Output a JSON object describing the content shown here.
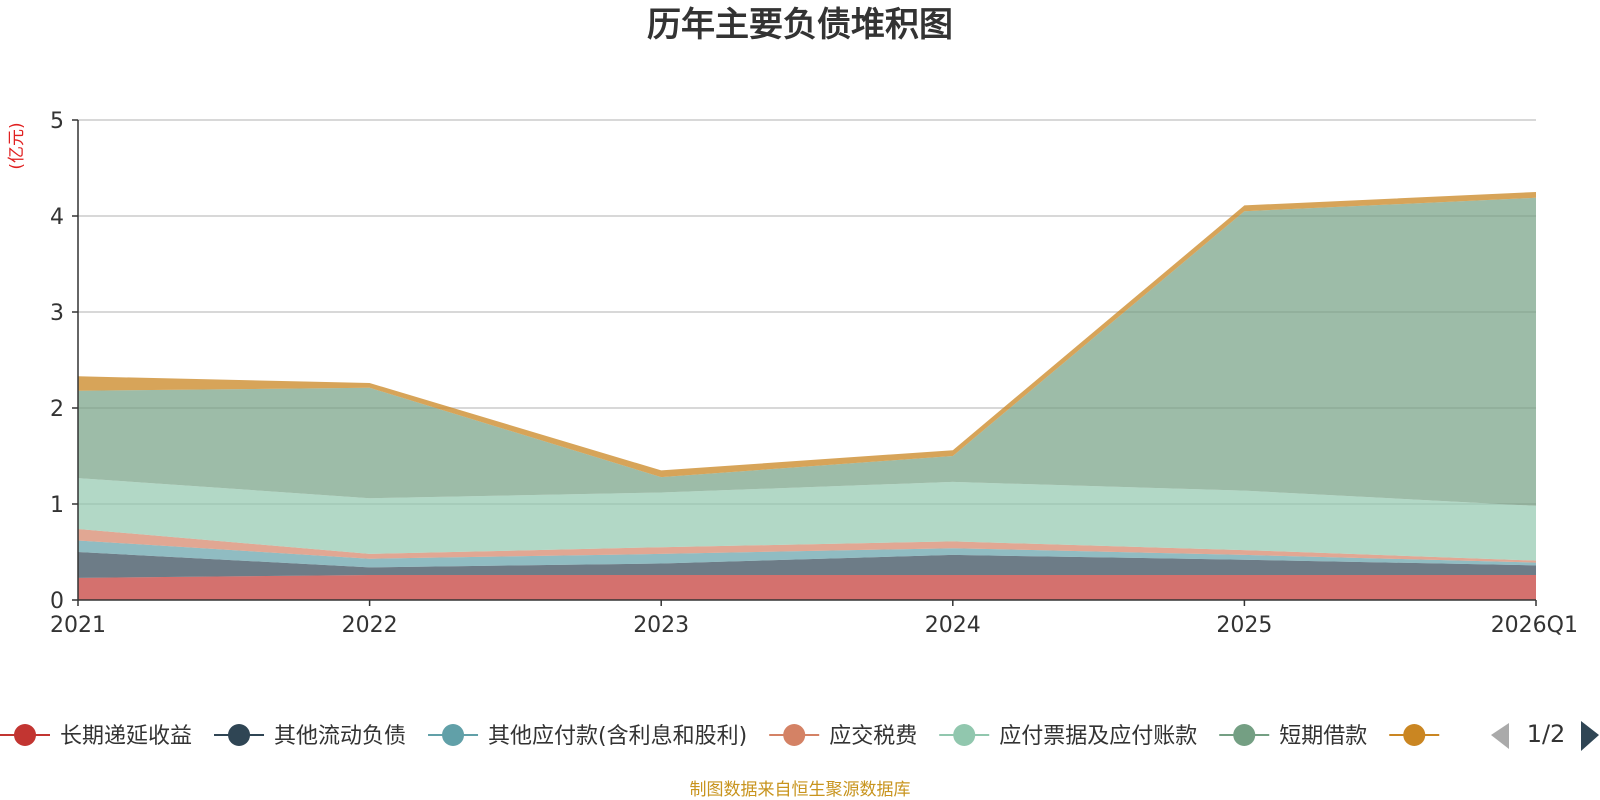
{
  "chart_data": {
    "type": "area",
    "stacked": true,
    "title": "历年主要负债堆积图",
    "unit_label": "(亿元)",
    "categories": [
      "2021",
      "2022",
      "2023",
      "2024",
      "2025",
      "2026Q1"
    ],
    "ylim": [
      0,
      5
    ],
    "yticks": [
      "0",
      "1",
      "2",
      "3",
      "4",
      "5"
    ],
    "grid": true,
    "legend_position": "bottom",
    "series": [
      {
        "name": "长期递延收益",
        "color": "#c23531",
        "values": [
          0.23,
          0.26,
          0.26,
          0.26,
          0.26,
          0.26
        ]
      },
      {
        "name": "其他流动负债",
        "color": "#2f4554",
        "values": [
          0.27,
          0.08,
          0.12,
          0.21,
          0.16,
          0.1
        ]
      },
      {
        "name": "其他应付款(含利息和股利)",
        "color": "#61a0a8",
        "values": [
          0.12,
          0.09,
          0.1,
          0.07,
          0.05,
          0.03
        ]
      },
      {
        "name": "应交税费",
        "color": "#d48265",
        "values": [
          0.12,
          0.05,
          0.07,
          0.07,
          0.05,
          0.02
        ]
      },
      {
        "name": "应付票据及应付账款",
        "color": "#91c7ae",
        "values": [
          0.53,
          0.58,
          0.57,
          0.62,
          0.62,
          0.57
        ]
      },
      {
        "name": "短期借款",
        "color": "#749f83",
        "values": [
          0.91,
          1.15,
          0.16,
          0.27,
          2.91,
          3.21
        ]
      },
      {
        "name": "",
        "color": "#ca8622",
        "values": [
          0.15,
          0.05,
          0.07,
          0.06,
          0.06,
          0.06
        ]
      }
    ]
  },
  "legend": {
    "page_indicator": "1/2"
  },
  "footer": {
    "source": "制图数据来自恒生聚源数据库"
  }
}
